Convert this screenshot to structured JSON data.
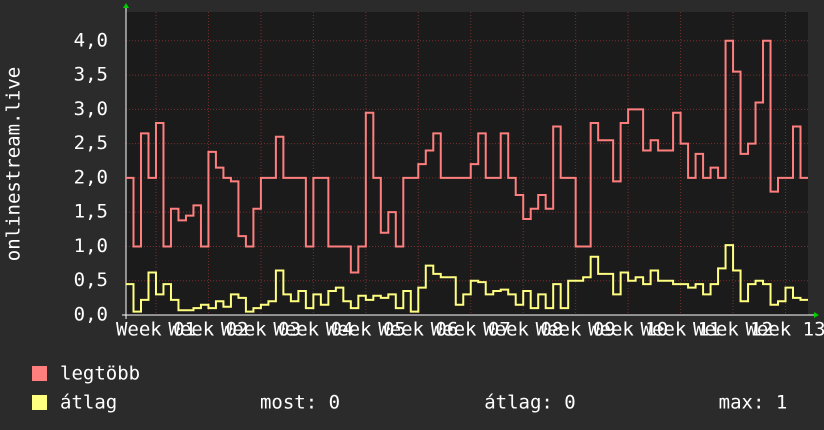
{
  "chart_data": {
    "type": "line",
    "ylabel": "onlinestream.live",
    "x": [
      3,
      4,
      5,
      6,
      7,
      8,
      9,
      10,
      11,
      12,
      13,
      14,
      15,
      16,
      17,
      18,
      19,
      20,
      21,
      22,
      23,
      24,
      25,
      26,
      27,
      28,
      29,
      30,
      31,
      32,
      33,
      34,
      35,
      36,
      37,
      38,
      39,
      40,
      41,
      42,
      43,
      44,
      45,
      46,
      47,
      48,
      49,
      50,
      51,
      52,
      53,
      54,
      55,
      56,
      57,
      58,
      59,
      60,
      61,
      62,
      63,
      64,
      65,
      66,
      67,
      68,
      69,
      70,
      71,
      72,
      73,
      74,
      75,
      76,
      77,
      78,
      79,
      80,
      81,
      82,
      83,
      84,
      85,
      86,
      87,
      88,
      89,
      90,
      91,
      92,
      93
    ],
    "series": [
      {
        "name": "legtöbb",
        "color": "#ff7f7f",
        "values": [
          2.0,
          1.0,
          2.65,
          2.0,
          2.8,
          1.0,
          1.55,
          1.38,
          1.45,
          1.6,
          1.0,
          2.38,
          2.15,
          2.0,
          1.95,
          1.15,
          1.0,
          1.55,
          2.0,
          2.0,
          2.6,
          2.0,
          2.0,
          2.0,
          1.0,
          2.0,
          2.0,
          1.0,
          1.0,
          1.0,
          0.62,
          1.0,
          2.95,
          2.0,
          1.2,
          1.5,
          1.0,
          2.0,
          2.0,
          2.2,
          2.4,
          2.65,
          2.0,
          2.0,
          2.0,
          2.0,
          2.2,
          2.65,
          2.0,
          2.0,
          2.65,
          2.0,
          1.75,
          1.4,
          1.55,
          1.75,
          1.55,
          2.75,
          2.0,
          2.0,
          1.0,
          1.0,
          2.8,
          2.55,
          2.55,
          1.95,
          2.8,
          3.0,
          3.0,
          2.4,
          2.55,
          2.4,
          2.4,
          2.95,
          2.5,
          2.0,
          2.35,
          2.0,
          2.15,
          2.0,
          4.0,
          3.55,
          2.35,
          2.5,
          3.1,
          4.0,
          1.8,
          2.0,
          2.0,
          2.75,
          2.0
        ]
      },
      {
        "name": "átlag",
        "color": "#ffff80",
        "values": [
          0.45,
          0.05,
          0.22,
          0.62,
          0.3,
          0.45,
          0.22,
          0.07,
          0.07,
          0.1,
          0.15,
          0.1,
          0.2,
          0.12,
          0.3,
          0.25,
          0.05,
          0.1,
          0.15,
          0.2,
          0.65,
          0.3,
          0.2,
          0.35,
          0.1,
          0.3,
          0.15,
          0.35,
          0.4,
          0.2,
          0.1,
          0.28,
          0.22,
          0.28,
          0.25,
          0.3,
          0.1,
          0.35,
          0.05,
          0.4,
          0.72,
          0.6,
          0.55,
          0.55,
          0.15,
          0.3,
          0.5,
          0.48,
          0.3,
          0.35,
          0.37,
          0.3,
          0.15,
          0.35,
          0.1,
          0.3,
          0.1,
          0.45,
          0.1,
          0.5,
          0.5,
          0.55,
          0.85,
          0.6,
          0.6,
          0.3,
          0.62,
          0.5,
          0.55,
          0.45,
          0.65,
          0.5,
          0.5,
          0.45,
          0.45,
          0.4,
          0.45,
          0.3,
          0.45,
          0.68,
          1.02,
          0.65,
          0.2,
          0.45,
          0.5,
          0.45,
          0.15,
          0.2,
          0.4,
          0.25,
          0.22
        ]
      }
    ],
    "stats": [
      "most: 0",
      "átlag: 0",
      "max: 1"
    ],
    "xlim": [
      3,
      94
    ],
    "ylim": [
      0,
      4.42
    ],
    "yticks": [
      {
        "value": 0,
        "label": "0,0"
      },
      {
        "value": 0.5,
        "label": "0,5"
      },
      {
        "value": 1,
        "label": "1,0"
      },
      {
        "value": 1.5,
        "label": "1,5"
      },
      {
        "value": 2,
        "label": "2,0"
      },
      {
        "value": 2.5,
        "label": "2,5"
      },
      {
        "value": 3,
        "label": "3,0"
      },
      {
        "value": 3.5,
        "label": "3,5"
      },
      {
        "value": 4,
        "label": "4,0"
      }
    ],
    "xticks": [
      {
        "value": 7,
        "label": "Week 01"
      },
      {
        "value": 14,
        "label": "Week 02"
      },
      {
        "value": 21,
        "label": "Week 03"
      },
      {
        "value": 28,
        "label": "Week 04"
      },
      {
        "value": 35,
        "label": "Week 05"
      },
      {
        "value": 42,
        "label": "Week 06"
      },
      {
        "value": 49,
        "label": "Week 07"
      },
      {
        "value": 56,
        "label": "Week 08"
      },
      {
        "value": 63,
        "label": "Week 09"
      },
      {
        "value": 70,
        "label": "Week 10"
      },
      {
        "value": 77,
        "label": "Week 11"
      },
      {
        "value": 84,
        "label": "Week 12"
      },
      {
        "value": 91,
        "label": "Week 13"
      }
    ],
    "grid": true
  }
}
